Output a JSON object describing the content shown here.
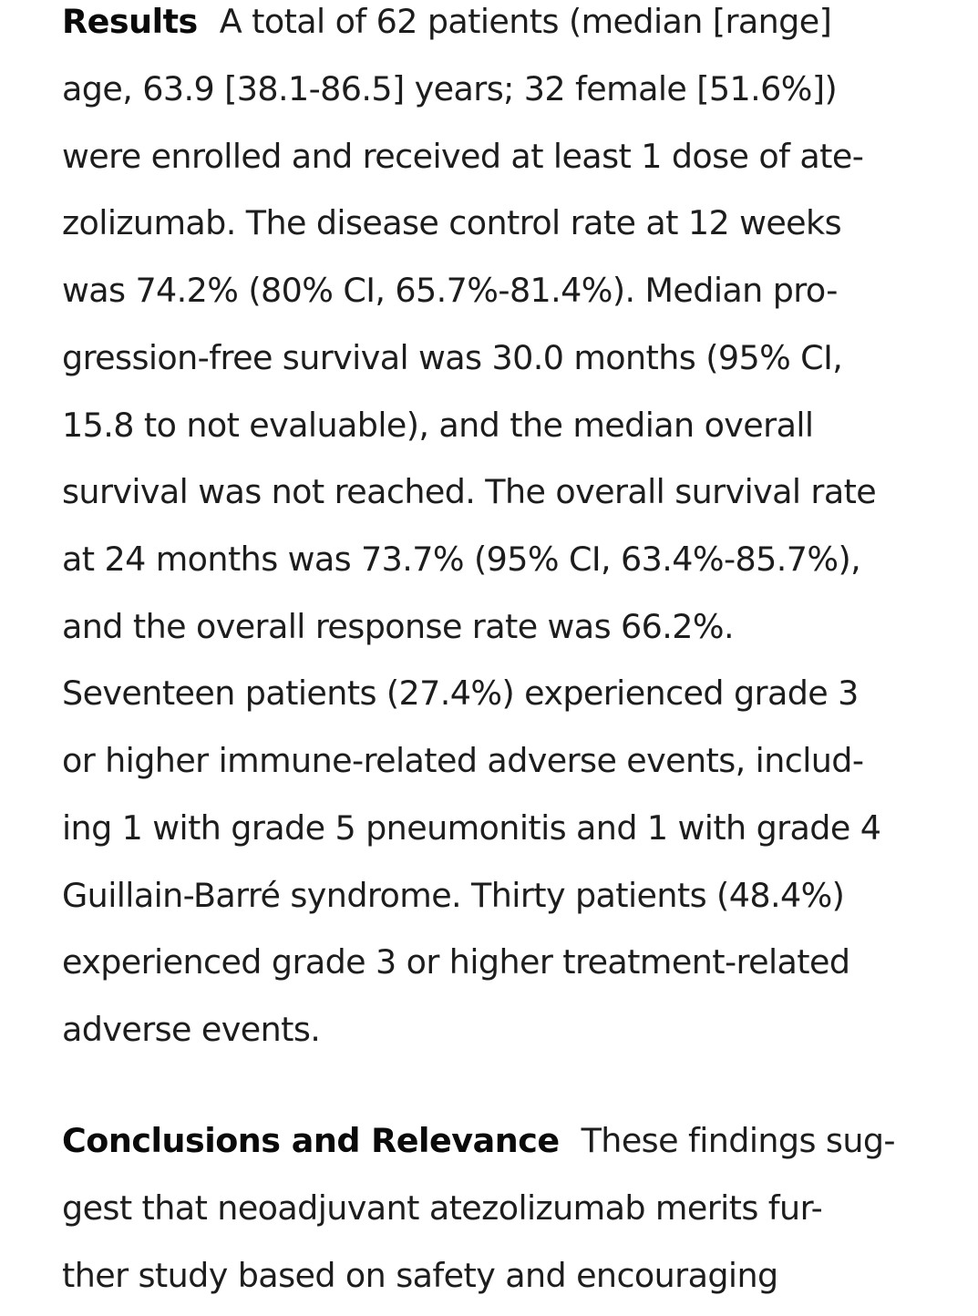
{
  "results": {
    "heading": "Results",
    "lines": [
      "A total of 62 patients (median [range]",
      "age, 63.9 [38.1-86.5] years; 32 female [51.6%])",
      "were enrolled and received at least 1 dose of ate-",
      "zolizumab. The disease control rate at 12 weeks",
      "was 74.2% (80% CI, 65.7%-81.4%). Median pro-",
      "gression-free survival was 30.0 months (95% CI,",
      "15.8 to not evaluable), and the median overall",
      "survival was not reached. The overall survival rate",
      "at 24 months was 73.7% (95% CI, 63.4%-85.7%),",
      "and the overall response rate was 66.2%.",
      "Seventeen patients (27.4%) experienced grade 3",
      "or higher immune-related adverse events, includ-",
      "ing 1 with grade 5 pneumonitis and 1 with grade 4",
      "Guillain-Barré syndrome. Thirty patients (48.4%)",
      "experienced grade 3 or higher treatment-related",
      "adverse events."
    ]
  },
  "conclusions": {
    "heading": "Conclusions and Relevance",
    "lines": [
      "These findings sug-",
      "gest that neoadjuvant atezolizumab merits fur-",
      "ther study based on safety and encouraging"
    ]
  }
}
